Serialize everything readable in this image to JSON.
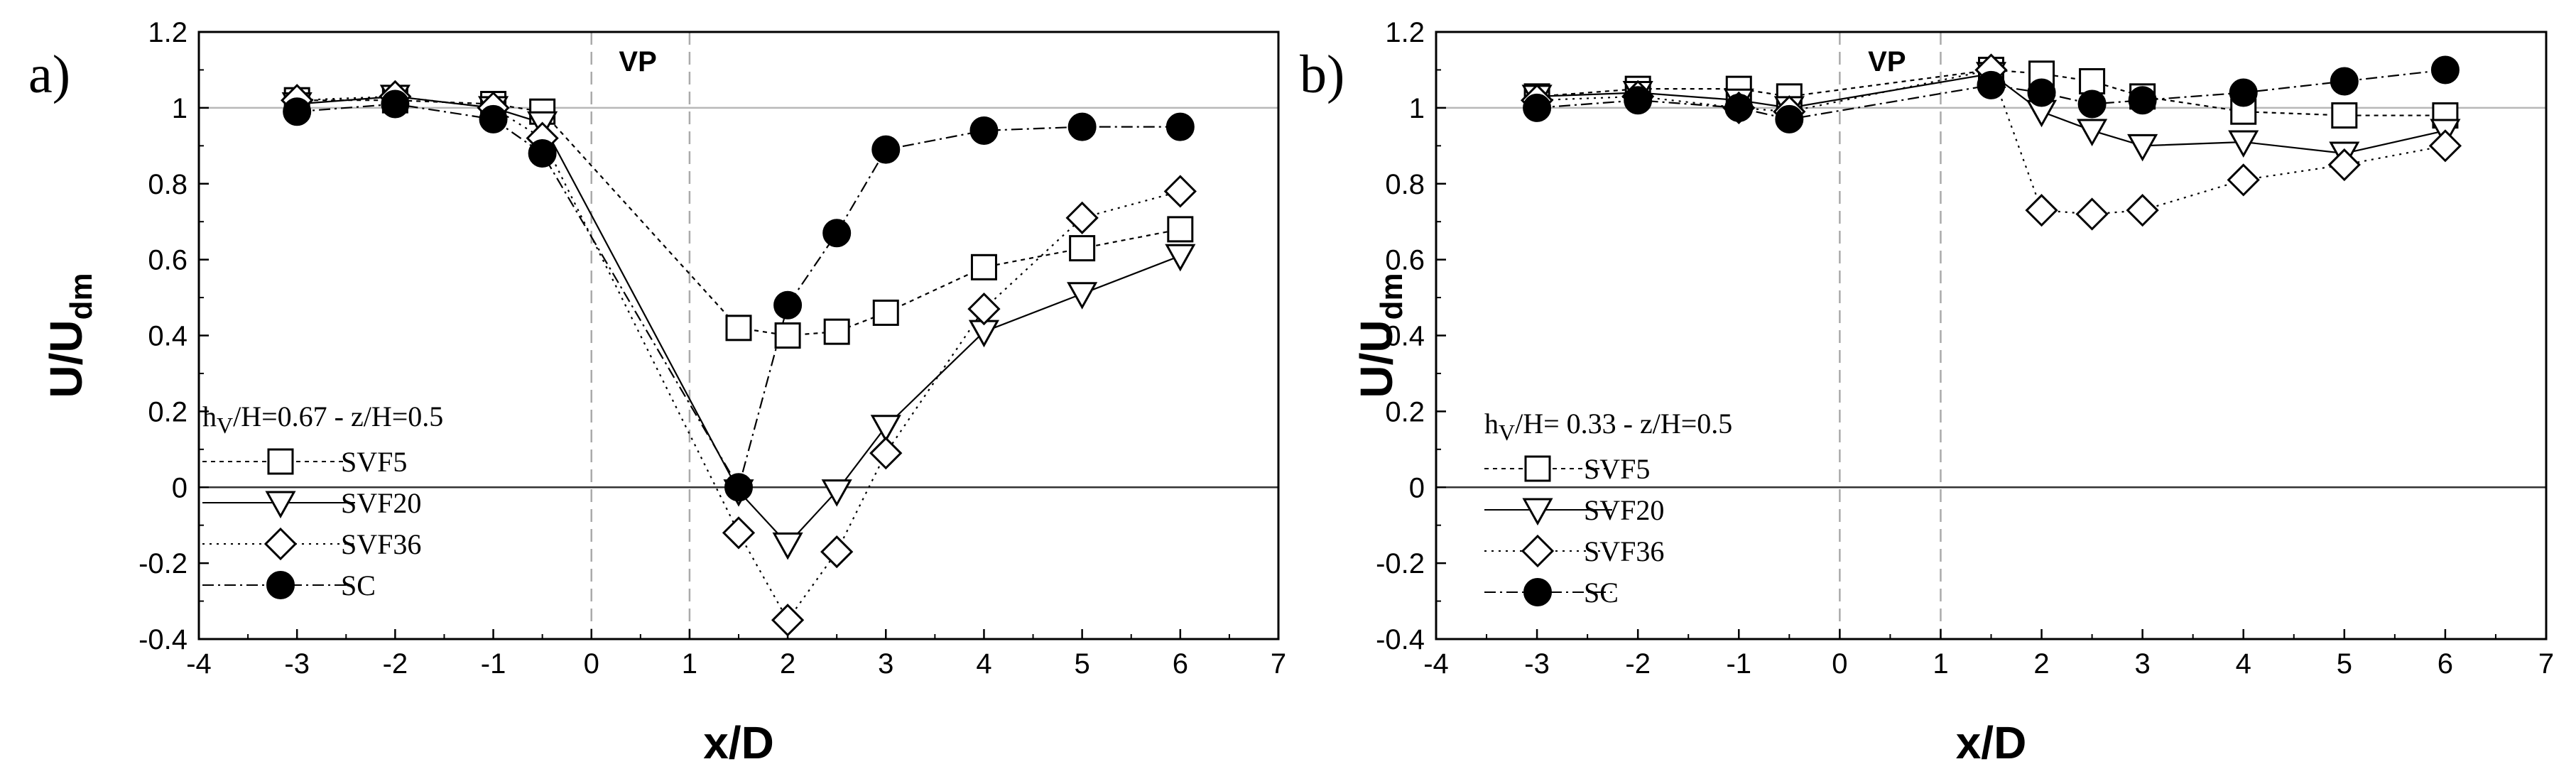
{
  "chart_data": [
    {
      "type": "line",
      "panel_label": "a)",
      "xlabel": "x/D",
      "ylabel_main": "U/U",
      "ylabel_sub": "dm",
      "xlim": [
        -4,
        7
      ],
      "ylim": [
        -0.4,
        1.2
      ],
      "xticks": [
        "-4",
        "-3",
        "-2",
        "-1",
        "0",
        "1",
        "2",
        "3",
        "4",
        "5",
        "6",
        "7"
      ],
      "yticks": [
        "-0.4",
        "-0.2",
        "0",
        "0.2",
        "0.4",
        "0.6",
        "0.8",
        "1",
        "1.2"
      ],
      "vp_label": "VP",
      "vlines": [
        0,
        1
      ],
      "hlines": [
        0,
        1
      ],
      "legend_title_main": "h",
      "legend_title_sub": "V",
      "legend_title_rest": "/H=0.67 - z/H=0.5",
      "series": [
        {
          "name": "SVF5",
          "marker": "square",
          "x": [
            -3,
            -2,
            -1,
            -0.5,
            1.5,
            2,
            2.5,
            3,
            4,
            5,
            6
          ],
          "y": [
            1.02,
            1.02,
            1.01,
            0.99,
            0.42,
            0.4,
            0.41,
            0.46,
            0.58,
            0.63,
            0.68
          ]
        },
        {
          "name": "SVF20",
          "marker": "tri-down",
          "x": [
            -3,
            -2,
            -1,
            -0.5,
            1.5,
            2,
            2.5,
            3,
            4,
            5,
            6
          ],
          "y": [
            1.01,
            1.03,
            1.0,
            0.96,
            -0.01,
            -0.15,
            -0.01,
            0.16,
            0.41,
            0.51,
            0.61
          ]
        },
        {
          "name": "SVF36",
          "marker": "diamond",
          "x": [
            -3,
            -2,
            -1,
            -0.5,
            1.5,
            2,
            2.5,
            3,
            4,
            5,
            6
          ],
          "y": [
            1.02,
            1.03,
            1.0,
            0.92,
            -0.12,
            -0.35,
            -0.17,
            0.09,
            0.47,
            0.71,
            0.78
          ]
        },
        {
          "name": "SC",
          "marker": "circle",
          "x": [
            -3,
            -2,
            -1,
            -0.5,
            1.5,
            2,
            2.5,
            3,
            4,
            5,
            6
          ],
          "y": [
            0.99,
            1.01,
            0.97,
            0.88,
            0.0,
            0.48,
            0.67,
            0.89,
            0.94,
            0.95,
            0.95
          ]
        }
      ]
    },
    {
      "type": "line",
      "panel_label": "b)",
      "xlabel": "x/D",
      "ylabel_main": "U/U",
      "ylabel_sub": "dm",
      "xlim": [
        -4,
        7
      ],
      "ylim": [
        -0.4,
        1.2
      ],
      "xticks": [
        "-4",
        "-3",
        "-2",
        "-1",
        "0",
        "1",
        "2",
        "3",
        "4",
        "5",
        "6",
        "7"
      ],
      "yticks": [
        "-0.4",
        "-0.2",
        "0",
        "0.2",
        "0.4",
        "0.6",
        "0.8",
        "1",
        "1.2"
      ],
      "vp_label": "VP",
      "vlines": [
        0,
        1
      ],
      "hlines": [
        0,
        1
      ],
      "legend_title_main": "h",
      "legend_title_sub": "V",
      "legend_title_rest": "/H= 0.33 - z/H=0.5",
      "series": [
        {
          "name": "SVF5",
          "marker": "square",
          "x": [
            -3,
            -2,
            -1,
            -0.5,
            1.5,
            2,
            2.5,
            3,
            4,
            5,
            6
          ],
          "y": [
            1.03,
            1.05,
            1.05,
            1.03,
            1.1,
            1.09,
            1.07,
            1.03,
            0.99,
            0.98,
            0.98
          ]
        },
        {
          "name": "SVF20",
          "marker": "tri-down",
          "x": [
            -3,
            -2,
            -1,
            -0.5,
            1.5,
            2,
            2.5,
            3,
            4,
            5,
            6
          ],
          "y": [
            1.03,
            1.04,
            1.02,
            1.0,
            1.09,
            0.99,
            0.94,
            0.9,
            0.91,
            0.88,
            0.94
          ]
        },
        {
          "name": "SVF36",
          "marker": "diamond",
          "x": [
            -3,
            -2,
            -1,
            -0.5,
            1.5,
            2,
            2.5,
            3,
            4,
            5,
            6
          ],
          "y": [
            1.02,
            1.03,
            1.0,
            0.99,
            1.1,
            0.73,
            0.72,
            0.73,
            0.81,
            0.85,
            0.9
          ]
        },
        {
          "name": "SC",
          "marker": "circle",
          "x": [
            -3,
            -2,
            -1,
            -0.5,
            1.5,
            2,
            2.5,
            3,
            4,
            5,
            6
          ],
          "y": [
            1.0,
            1.02,
            1.0,
            0.97,
            1.06,
            1.04,
            1.01,
            1.02,
            1.04,
            1.07,
            1.1
          ]
        }
      ]
    }
  ]
}
